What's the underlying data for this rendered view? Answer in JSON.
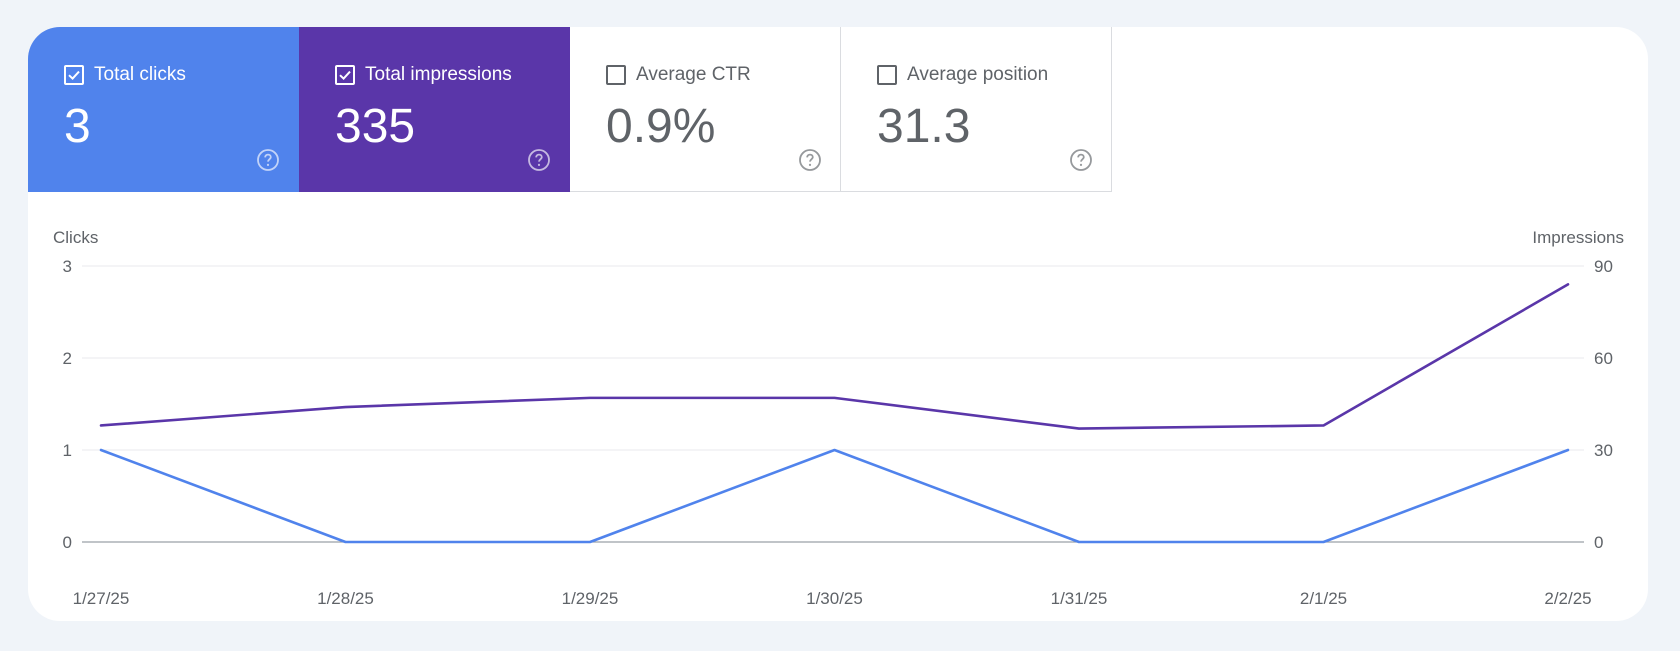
{
  "metrics": [
    {
      "key": "clicks",
      "label": "Total clicks",
      "value": "3",
      "checked": true,
      "color": "#5083ec"
    },
    {
      "key": "impressions",
      "label": "Total impressions",
      "value": "335",
      "checked": true,
      "color": "#5a36a9"
    },
    {
      "key": "ctr",
      "label": "Average CTR",
      "value": "0.9%",
      "checked": false
    },
    {
      "key": "position",
      "label": "Average position",
      "value": "31.3",
      "checked": false
    }
  ],
  "chart_data": {
    "type": "line",
    "x": [
      "1/27/25",
      "1/28/25",
      "1/29/25",
      "1/30/25",
      "1/31/25",
      "2/1/25",
      "2/2/25"
    ],
    "left_axis": {
      "label": "Clicks",
      "ticks": [
        "0",
        "1",
        "2",
        "3"
      ],
      "range": [
        0,
        3
      ]
    },
    "right_axis": {
      "label": "Impressions",
      "ticks": [
        "0",
        "30",
        "60",
        "90"
      ],
      "range": [
        0,
        90
      ]
    },
    "series": [
      {
        "name": "Total clicks",
        "axis": "left",
        "color": "#5083ec",
        "values": [
          1,
          0,
          0,
          1,
          0,
          0,
          1
        ]
      },
      {
        "name": "Total impressions",
        "axis": "right",
        "color": "#5a36a9",
        "values": [
          38,
          44,
          47,
          47,
          37,
          38,
          84
        ]
      }
    ],
    "grid": true,
    "legend": "none"
  }
}
